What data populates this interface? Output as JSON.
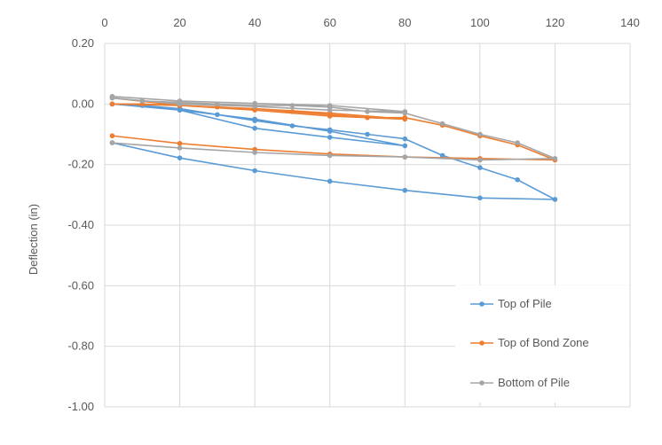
{
  "chart_data": {
    "type": "line",
    "title": "",
    "xlabel": "",
    "ylabel": "Deflection (in)",
    "xlim": [
      0,
      140
    ],
    "ylim": [
      -1.0,
      0.2
    ],
    "x_ticks": [
      "0",
      "20",
      "40",
      "60",
      "80",
      "100",
      "120",
      "140"
    ],
    "y_ticks": [
      "0.20",
      "0.00",
      "-0.20",
      "-0.40",
      "-0.60",
      "-0.80",
      "-1.00"
    ],
    "grid": true,
    "x_axis_position": "top",
    "legend_position": "bottom-right",
    "colors": {
      "top_of_pile": "#5b9bd5",
      "top_of_bond_zone": "#ed7d31",
      "bottom_of_pile": "#a5a5a5",
      "grid": "#d9d9d9",
      "text": "#595959"
    },
    "series": [
      {
        "name": "Top of Pile",
        "color": "#5b9bd5",
        "x": [
          2,
          20,
          40,
          60,
          80,
          60,
          40,
          20,
          2,
          10,
          20,
          30,
          40,
          50,
          60,
          70,
          80,
          90,
          100,
          110,
          120,
          100,
          80,
          60,
          40,
          20,
          2
        ],
        "y": [
          0.0,
          -0.02,
          -0.08,
          -0.11,
          -0.138,
          -0.09,
          -0.05,
          -0.02,
          0.0,
          -0.005,
          -0.015,
          -0.035,
          -0.055,
          -0.072,
          -0.085,
          -0.1,
          -0.115,
          -0.17,
          -0.21,
          -0.25,
          -0.315,
          -0.31,
          -0.285,
          -0.255,
          -0.22,
          -0.178,
          -0.128
        ]
      },
      {
        "name": "Top of Bond Zone",
        "color": "#ed7d31",
        "x": [
          2,
          20,
          40,
          60,
          80,
          60,
          40,
          20,
          2,
          10,
          20,
          30,
          40,
          50,
          60,
          70,
          80,
          90,
          100,
          110,
          120,
          100,
          80,
          60,
          40,
          20,
          2
        ],
        "y": [
          0.02,
          -0.005,
          -0.02,
          -0.04,
          -0.05,
          -0.03,
          -0.015,
          -0.005,
          0.0,
          0.0,
          -0.005,
          -0.01,
          -0.015,
          -0.025,
          -0.035,
          -0.045,
          -0.045,
          -0.07,
          -0.105,
          -0.135,
          -0.185,
          -0.18,
          -0.175,
          -0.165,
          -0.15,
          -0.13,
          -0.105
        ]
      },
      {
        "name": "Bottom of Pile",
        "color": "#a5a5a5",
        "x": [
          2,
          20,
          40,
          60,
          80,
          60,
          40,
          20,
          2,
          10,
          20,
          30,
          40,
          50,
          60,
          70,
          80,
          90,
          100,
          110,
          120,
          100,
          80,
          60,
          40,
          20,
          2
        ],
        "y": [
          0.025,
          0.01,
          0.002,
          -0.005,
          -0.025,
          -0.02,
          -0.008,
          0.0,
          0.02,
          0.01,
          0.005,
          0.0,
          -0.005,
          -0.005,
          -0.01,
          -0.025,
          -0.03,
          -0.065,
          -0.1,
          -0.128,
          -0.18,
          -0.185,
          -0.175,
          -0.17,
          -0.16,
          -0.145,
          -0.128
        ]
      }
    ]
  }
}
